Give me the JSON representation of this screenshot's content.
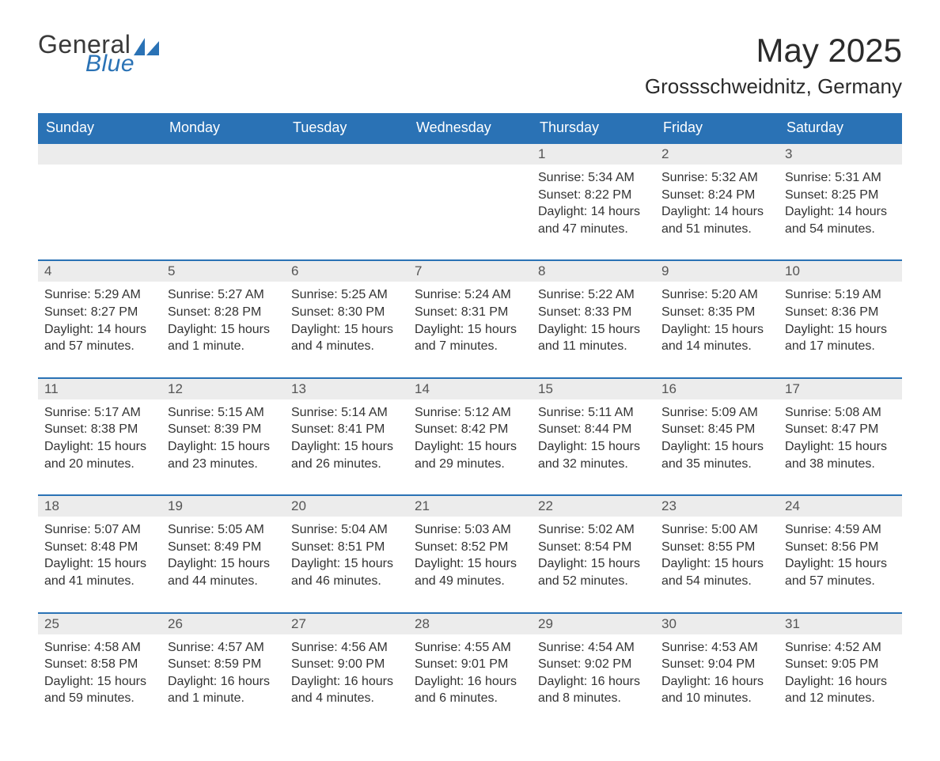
{
  "brand": {
    "word1": "General",
    "word2": "Blue"
  },
  "title": "May 2025",
  "subtitle": "Grossschweidnitz, Germany",
  "colors": {
    "header_bg": "#2a72b5",
    "header_text": "#ffffff",
    "daynum_bg": "#ececec",
    "row_border": "#2a72b5",
    "body_bg": "#ffffff",
    "text": "#333333"
  },
  "columns": [
    "Sunday",
    "Monday",
    "Tuesday",
    "Wednesday",
    "Thursday",
    "Friday",
    "Saturday"
  ],
  "labels": {
    "sunrise": "Sunrise:",
    "sunset": "Sunset:",
    "daylight": "Daylight:"
  },
  "weeks": [
    [
      null,
      null,
      null,
      null,
      {
        "n": "1",
        "sr": "5:34 AM",
        "ss": "8:22 PM",
        "dl": "14 hours and 47 minutes."
      },
      {
        "n": "2",
        "sr": "5:32 AM",
        "ss": "8:24 PM",
        "dl": "14 hours and 51 minutes."
      },
      {
        "n": "3",
        "sr": "5:31 AM",
        "ss": "8:25 PM",
        "dl": "14 hours and 54 minutes."
      }
    ],
    [
      {
        "n": "4",
        "sr": "5:29 AM",
        "ss": "8:27 PM",
        "dl": "14 hours and 57 minutes."
      },
      {
        "n": "5",
        "sr": "5:27 AM",
        "ss": "8:28 PM",
        "dl": "15 hours and 1 minute."
      },
      {
        "n": "6",
        "sr": "5:25 AM",
        "ss": "8:30 PM",
        "dl": "15 hours and 4 minutes."
      },
      {
        "n": "7",
        "sr": "5:24 AM",
        "ss": "8:31 PM",
        "dl": "15 hours and 7 minutes."
      },
      {
        "n": "8",
        "sr": "5:22 AM",
        "ss": "8:33 PM",
        "dl": "15 hours and 11 minutes."
      },
      {
        "n": "9",
        "sr": "5:20 AM",
        "ss": "8:35 PM",
        "dl": "15 hours and 14 minutes."
      },
      {
        "n": "10",
        "sr": "5:19 AM",
        "ss": "8:36 PM",
        "dl": "15 hours and 17 minutes."
      }
    ],
    [
      {
        "n": "11",
        "sr": "5:17 AM",
        "ss": "8:38 PM",
        "dl": "15 hours and 20 minutes."
      },
      {
        "n": "12",
        "sr": "5:15 AM",
        "ss": "8:39 PM",
        "dl": "15 hours and 23 minutes."
      },
      {
        "n": "13",
        "sr": "5:14 AM",
        "ss": "8:41 PM",
        "dl": "15 hours and 26 minutes."
      },
      {
        "n": "14",
        "sr": "5:12 AM",
        "ss": "8:42 PM",
        "dl": "15 hours and 29 minutes."
      },
      {
        "n": "15",
        "sr": "5:11 AM",
        "ss": "8:44 PM",
        "dl": "15 hours and 32 minutes."
      },
      {
        "n": "16",
        "sr": "5:09 AM",
        "ss": "8:45 PM",
        "dl": "15 hours and 35 minutes."
      },
      {
        "n": "17",
        "sr": "5:08 AM",
        "ss": "8:47 PM",
        "dl": "15 hours and 38 minutes."
      }
    ],
    [
      {
        "n": "18",
        "sr": "5:07 AM",
        "ss": "8:48 PM",
        "dl": "15 hours and 41 minutes."
      },
      {
        "n": "19",
        "sr": "5:05 AM",
        "ss": "8:49 PM",
        "dl": "15 hours and 44 minutes."
      },
      {
        "n": "20",
        "sr": "5:04 AM",
        "ss": "8:51 PM",
        "dl": "15 hours and 46 minutes."
      },
      {
        "n": "21",
        "sr": "5:03 AM",
        "ss": "8:52 PM",
        "dl": "15 hours and 49 minutes."
      },
      {
        "n": "22",
        "sr": "5:02 AM",
        "ss": "8:54 PM",
        "dl": "15 hours and 52 minutes."
      },
      {
        "n": "23",
        "sr": "5:00 AM",
        "ss": "8:55 PM",
        "dl": "15 hours and 54 minutes."
      },
      {
        "n": "24",
        "sr": "4:59 AM",
        "ss": "8:56 PM",
        "dl": "15 hours and 57 minutes."
      }
    ],
    [
      {
        "n": "25",
        "sr": "4:58 AM",
        "ss": "8:58 PM",
        "dl": "15 hours and 59 minutes."
      },
      {
        "n": "26",
        "sr": "4:57 AM",
        "ss": "8:59 PM",
        "dl": "16 hours and 1 minute."
      },
      {
        "n": "27",
        "sr": "4:56 AM",
        "ss": "9:00 PM",
        "dl": "16 hours and 4 minutes."
      },
      {
        "n": "28",
        "sr": "4:55 AM",
        "ss": "9:01 PM",
        "dl": "16 hours and 6 minutes."
      },
      {
        "n": "29",
        "sr": "4:54 AM",
        "ss": "9:02 PM",
        "dl": "16 hours and 8 minutes."
      },
      {
        "n": "30",
        "sr": "4:53 AM",
        "ss": "9:04 PM",
        "dl": "16 hours and 10 minutes."
      },
      {
        "n": "31",
        "sr": "4:52 AM",
        "ss": "9:05 PM",
        "dl": "16 hours and 12 minutes."
      }
    ]
  ]
}
